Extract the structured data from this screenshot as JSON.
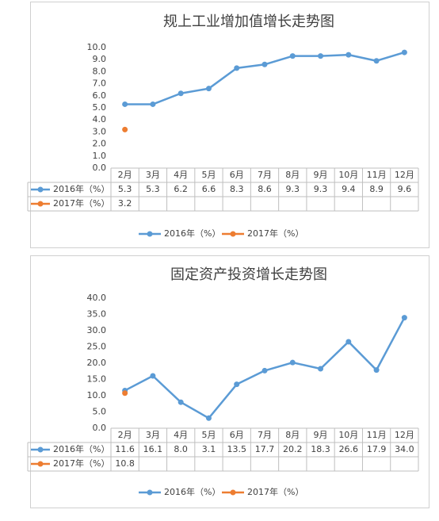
{
  "chart_data": [
    {
      "type": "line",
      "title": "规上工业增加值增长走势图",
      "categories": [
        "2月",
        "3月",
        "4月",
        "5月",
        "6月",
        "7月",
        "8月",
        "9月",
        "10月",
        "11月",
        "12月"
      ],
      "series": [
        {
          "name": "2016年（%）",
          "color": "#5b9bd5",
          "values": [
            5.3,
            5.3,
            6.2,
            6.6,
            8.3,
            8.6,
            9.3,
            9.3,
            9.4,
            8.9,
            9.6
          ]
        },
        {
          "name": "2017年（%）",
          "color": "#ed7d31",
          "values": [
            3.2,
            null,
            null,
            null,
            null,
            null,
            null,
            null,
            null,
            null,
            null
          ]
        }
      ],
      "ylim": [
        0,
        10
      ],
      "yticks": [
        {
          "value": 0,
          "label": "0.0"
        },
        {
          "value": 1,
          "label": "1.0"
        },
        {
          "value": 2,
          "label": "2.0"
        },
        {
          "value": 3,
          "label": "3.0"
        },
        {
          "value": 4,
          "label": "4.0"
        },
        {
          "value": 5,
          "label": "5.0"
        },
        {
          "value": 6,
          "label": "6.0"
        },
        {
          "value": 7,
          "label": "7.0"
        },
        {
          "value": 8,
          "label": "8.0"
        },
        {
          "value": 9,
          "label": "9.0"
        },
        {
          "value": 10,
          "label": "10.0"
        }
      ],
      "grid": false,
      "legend": "bottom"
    },
    {
      "type": "line",
      "title": "固定资产投资增长走势图",
      "categories": [
        "2月",
        "3月",
        "4月",
        "5月",
        "6月",
        "7月",
        "8月",
        "9月",
        "10月",
        "11月",
        "12月"
      ],
      "series": [
        {
          "name": "2016年（%）",
          "color": "#5b9bd5",
          "values": [
            11.6,
            16.1,
            8.0,
            3.1,
            13.5,
            17.7,
            20.2,
            18.3,
            26.6,
            17.9,
            34.0
          ],
          "value_labels": [
            "11.6",
            "16.1",
            "8.0",
            "3.1",
            "13.5",
            "17.7",
            "20.2",
            "18.3",
            "26.6",
            "17.9",
            "34.0"
          ]
        },
        {
          "name": "2017年（%）",
          "color": "#ed7d31",
          "values": [
            10.8,
            null,
            null,
            null,
            null,
            null,
            null,
            null,
            null,
            null,
            null
          ]
        }
      ],
      "ylim": [
        0,
        40
      ],
      "yticks": [
        {
          "value": 0,
          "label": "0.0"
        },
        {
          "value": 5,
          "label": "5.0"
        },
        {
          "value": 10,
          "label": "10.0"
        },
        {
          "value": 15,
          "label": "15.0"
        },
        {
          "value": 20,
          "label": "20.0"
        },
        {
          "value": 25,
          "label": "25.0"
        },
        {
          "value": 30,
          "label": "30.0"
        },
        {
          "value": 35,
          "label": "35.0"
        },
        {
          "value": 40,
          "label": "40.0"
        }
      ],
      "grid": false,
      "legend": "bottom"
    }
  ]
}
